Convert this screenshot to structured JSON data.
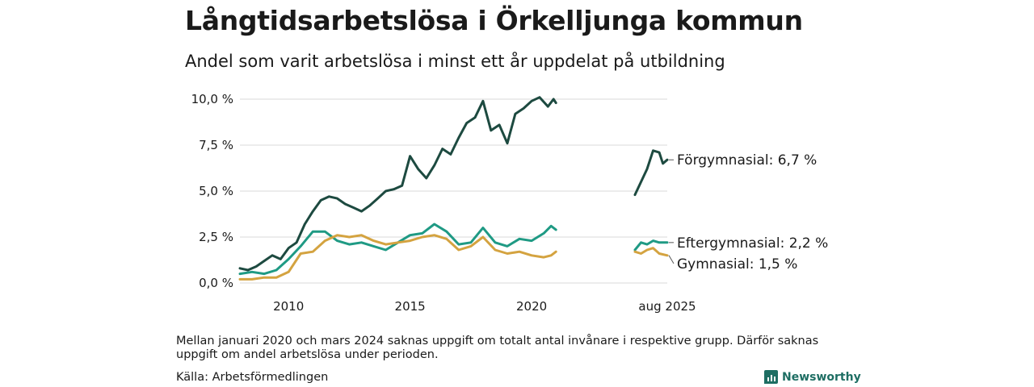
{
  "title": "Långtidsarbetslösa i Örkelljunga kommun",
  "subtitle": "Andel som varit arbetslösa i minst ett år uppdelat på utbildning",
  "footnote": "Mellan januari 2020 och mars 2024 saknas uppgift om totalt antal invånare i respektive grupp. Därför saknas uppgift om andel arbetslösa under perioden.",
  "source": "Källa: Arbetsförmedlingen",
  "brand": "Newsworthy",
  "chart_data": {
    "type": "line",
    "y_ticks": [
      {
        "value": 0,
        "label": "0,0 %"
      },
      {
        "value": 2.5,
        "label": "2,5 %"
      },
      {
        "value": 5,
        "label": "5,0 %"
      },
      {
        "value": 7.5,
        "label": "7,5 %"
      },
      {
        "value": 10,
        "label": "10,0 %"
      }
    ],
    "x_ticks": [
      {
        "value": 2010.0,
        "label": "2010"
      },
      {
        "value": 2015.0,
        "label": "2015"
      },
      {
        "value": 2020.0,
        "label": "2020"
      },
      {
        "value": 2025.58,
        "label": "aug 2025"
      }
    ],
    "ylim": [
      0,
      10
    ],
    "grid": true,
    "series": [
      {
        "name": "Förgymnasial",
        "end_label": "Förgymnasial: 6,7 %",
        "color": "#1d4a40",
        "segments": [
          [
            [
              2008.0,
              0.8
            ],
            [
              2008.33,
              0.7
            ],
            [
              2008.67,
              0.9
            ],
            [
              2009.0,
              1.2
            ],
            [
              2009.33,
              1.5
            ],
            [
              2009.67,
              1.3
            ],
            [
              2010.0,
              1.9
            ],
            [
              2010.33,
              2.2
            ],
            [
              2010.67,
              3.2
            ],
            [
              2011.0,
              3.9
            ],
            [
              2011.33,
              4.5
            ],
            [
              2011.67,
              4.7
            ],
            [
              2012.0,
              4.6
            ],
            [
              2012.33,
              4.3
            ],
            [
              2012.67,
              4.1
            ],
            [
              2013.0,
              3.9
            ],
            [
              2013.33,
              4.2
            ],
            [
              2013.67,
              4.6
            ],
            [
              2014.0,
              5.0
            ],
            [
              2014.33,
              5.1
            ],
            [
              2014.67,
              5.3
            ],
            [
              2015.0,
              6.9
            ],
            [
              2015.33,
              6.2
            ],
            [
              2015.67,
              5.7
            ],
            [
              2016.0,
              6.4
            ],
            [
              2016.33,
              7.3
            ],
            [
              2016.67,
              7.0
            ],
            [
              2017.0,
              7.9
            ],
            [
              2017.33,
              8.7
            ],
            [
              2017.67,
              9.0
            ],
            [
              2018.0,
              9.9
            ],
            [
              2018.33,
              8.3
            ],
            [
              2018.67,
              8.6
            ],
            [
              2019.0,
              7.6
            ],
            [
              2019.33,
              9.2
            ],
            [
              2019.67,
              9.5
            ],
            [
              2020.0,
              9.9
            ],
            [
              2020.33,
              10.1
            ],
            [
              2020.67,
              9.6
            ],
            [
              2020.9,
              10.0
            ],
            [
              2021.0,
              9.8
            ]
          ],
          [
            [
              2024.25,
              4.8
            ],
            [
              2024.5,
              5.5
            ],
            [
              2024.75,
              6.2
            ],
            [
              2025.0,
              7.2
            ],
            [
              2025.25,
              7.1
            ],
            [
              2025.4,
              6.5
            ],
            [
              2025.58,
              6.7
            ]
          ]
        ]
      },
      {
        "name": "Eftergymnasial",
        "end_label": "Eftergymnasial: 2,2 %",
        "color": "#1f9a84",
        "segments": [
          [
            [
              2008.0,
              0.5
            ],
            [
              2008.5,
              0.6
            ],
            [
              2009.0,
              0.5
            ],
            [
              2009.5,
              0.7
            ],
            [
              2010.0,
              1.3
            ],
            [
              2010.5,
              2.0
            ],
            [
              2011.0,
              2.8
            ],
            [
              2011.5,
              2.8
            ],
            [
              2012.0,
              2.3
            ],
            [
              2012.5,
              2.1
            ],
            [
              2013.0,
              2.2
            ],
            [
              2013.5,
              2.0
            ],
            [
              2014.0,
              1.8
            ],
            [
              2014.5,
              2.2
            ],
            [
              2015.0,
              2.6
            ],
            [
              2015.5,
              2.7
            ],
            [
              2016.0,
              3.2
            ],
            [
              2016.5,
              2.8
            ],
            [
              2017.0,
              2.1
            ],
            [
              2017.5,
              2.2
            ],
            [
              2018.0,
              3.0
            ],
            [
              2018.5,
              2.2
            ],
            [
              2019.0,
              2.0
            ],
            [
              2019.5,
              2.4
            ],
            [
              2020.0,
              2.3
            ],
            [
              2020.5,
              2.7
            ],
            [
              2020.8,
              3.1
            ],
            [
              2021.0,
              2.9
            ]
          ],
          [
            [
              2024.25,
              1.8
            ],
            [
              2024.5,
              2.2
            ],
            [
              2024.75,
              2.1
            ],
            [
              2025.0,
              2.3
            ],
            [
              2025.25,
              2.2
            ],
            [
              2025.58,
              2.2
            ]
          ]
        ]
      },
      {
        "name": "Gymnasial",
        "end_label": "Gymnasial: 1,5 %",
        "color": "#d4a340",
        "segments": [
          [
            [
              2008.0,
              0.2
            ],
            [
              2008.5,
              0.2
            ],
            [
              2009.0,
              0.3
            ],
            [
              2009.5,
              0.3
            ],
            [
              2010.0,
              0.6
            ],
            [
              2010.5,
              1.6
            ],
            [
              2011.0,
              1.7
            ],
            [
              2011.5,
              2.3
            ],
            [
              2012.0,
              2.6
            ],
            [
              2012.5,
              2.5
            ],
            [
              2013.0,
              2.6
            ],
            [
              2013.5,
              2.3
            ],
            [
              2014.0,
              2.1
            ],
            [
              2014.5,
              2.2
            ],
            [
              2015.0,
              2.3
            ],
            [
              2015.5,
              2.5
            ],
            [
              2016.0,
              2.6
            ],
            [
              2016.5,
              2.4
            ],
            [
              2017.0,
              1.8
            ],
            [
              2017.5,
              2.0
            ],
            [
              2018.0,
              2.5
            ],
            [
              2018.5,
              1.8
            ],
            [
              2019.0,
              1.6
            ],
            [
              2019.5,
              1.7
            ],
            [
              2020.0,
              1.5
            ],
            [
              2020.5,
              1.4
            ],
            [
              2020.8,
              1.5
            ],
            [
              2021.0,
              1.7
            ]
          ],
          [
            [
              2024.25,
              1.7
            ],
            [
              2024.5,
              1.6
            ],
            [
              2024.75,
              1.8
            ],
            [
              2025.0,
              1.9
            ],
            [
              2025.25,
              1.6
            ],
            [
              2025.58,
              1.5
            ]
          ]
        ]
      }
    ]
  }
}
